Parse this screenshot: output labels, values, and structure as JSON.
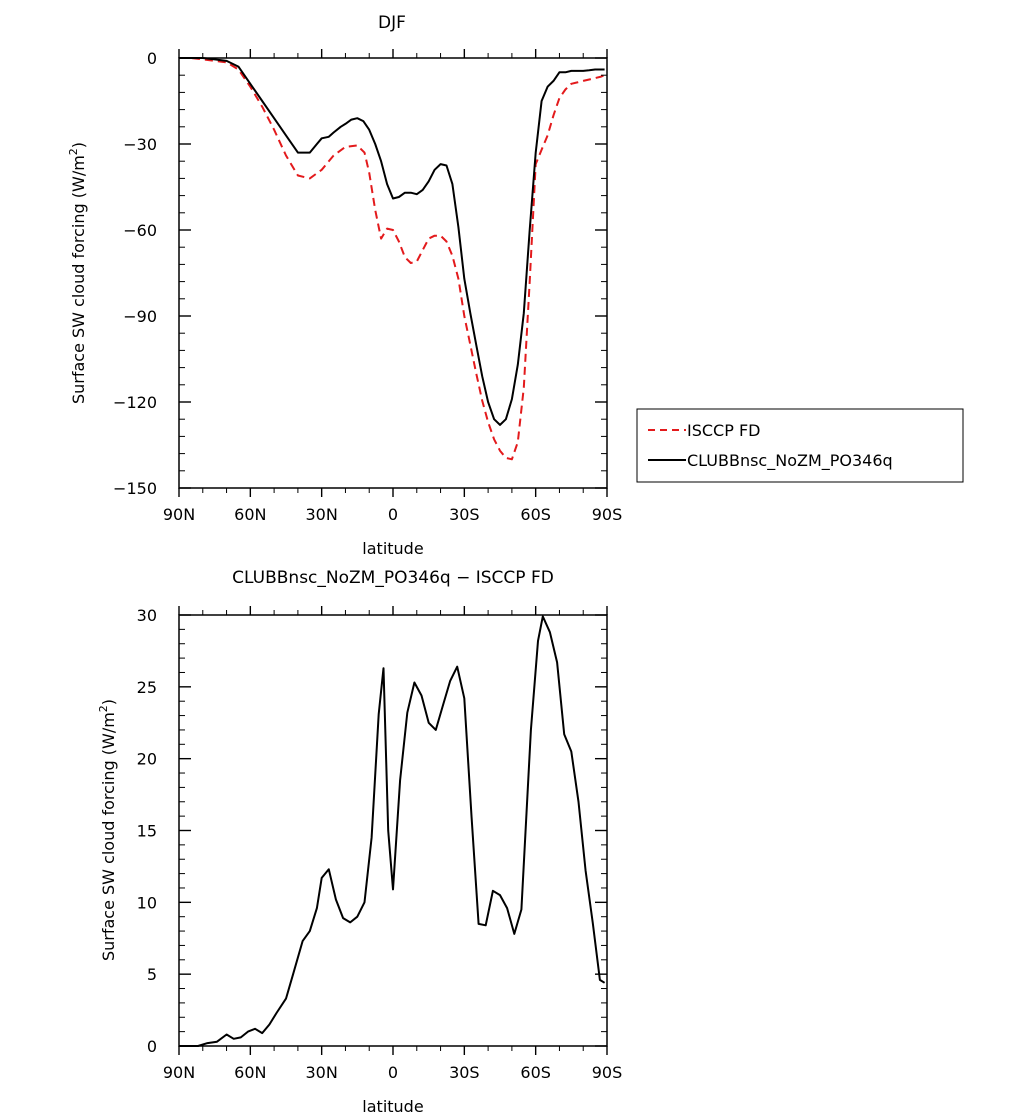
{
  "chart_data": [
    {
      "type": "line",
      "title": "DJF",
      "xlabel": "latitude",
      "ylabel": "Surface SW cloud forcing (W/m",
      "ylabel_sup": "2",
      "ylabel_close": ")",
      "xlim": [
        -90,
        90
      ],
      "ylim": [
        -150,
        0
      ],
      "x_ticks": [
        -90,
        -60,
        -30,
        0,
        30,
        60,
        90
      ],
      "x_tick_labels": [
        "90N",
        "60N",
        "30N",
        "0",
        "30S",
        "60S",
        "90S"
      ],
      "y_ticks": [
        0,
        -30,
        -60,
        -90,
        -120,
        -150
      ],
      "y_tick_labels": [
        "0",
        "−30",
        "−60",
        "−90",
        "−120",
        "−150"
      ],
      "legend_position": "right",
      "series": [
        {
          "name": "ISCCP FD",
          "color": "#e31a1c",
          "dash": "dashed",
          "x": [
            -90,
            -85,
            -80,
            -75,
            -70,
            -65,
            -60,
            -55,
            -50,
            -45,
            -40,
            -35,
            -30,
            -25,
            -20,
            -15,
            -12,
            -10,
            -7.5,
            -5,
            -2.5,
            0,
            2.5,
            5,
            7.5,
            10,
            12.5,
            15,
            17.5,
            20,
            22.5,
            25,
            27.5,
            30,
            32.5,
            35,
            37.5,
            40,
            42.5,
            45,
            47.5,
            50,
            52.5,
            55,
            57.5,
            60,
            62.5,
            65,
            67.5,
            70,
            72.5,
            75,
            77.5,
            80,
            82.5,
            85,
            87.5,
            89
          ],
          "y": [
            0,
            0,
            -0.5,
            -1,
            -1.5,
            -4,
            -10,
            -17,
            -25,
            -34,
            -41,
            -42,
            -39,
            -34,
            -31,
            -30.5,
            -33,
            -40,
            -53,
            -63,
            -59.5,
            -60,
            -64,
            -69.5,
            -71.5,
            -71,
            -67,
            -63,
            -62,
            -62,
            -64,
            -69,
            -77,
            -90,
            -100,
            -110,
            -119.5,
            -127,
            -133,
            -137,
            -139.5,
            -140,
            -134,
            -115,
            -78,
            -37,
            -32,
            -27,
            -20,
            -14,
            -11,
            -9,
            -8.5,
            -8,
            -7.5,
            -7,
            -6.5,
            -6
          ]
        },
        {
          "name": "CLUBBnsc_NoZM_PO346q",
          "color": "#000000",
          "dash": "solid",
          "x": [
            -90,
            -85,
            -80,
            -75,
            -70,
            -65,
            -60,
            -55,
            -50,
            -45,
            -40,
            -35,
            -32,
            -30,
            -27,
            -25,
            -22,
            -20,
            -17.5,
            -15,
            -12.5,
            -10,
            -7.5,
            -5,
            -2.5,
            0,
            2.5,
            5,
            7.5,
            10,
            12.5,
            15,
            17.5,
            20,
            22.5,
            25,
            27.5,
            30,
            32.5,
            35,
            37.5,
            40,
            42.5,
            45,
            47.5,
            50,
            52.5,
            55,
            57.5,
            60,
            62.5,
            65,
            67.5,
            70,
            72.5,
            75,
            77.5,
            80,
            82.5,
            85,
            87.5,
            89
          ],
          "y": [
            0,
            0,
            0,
            -0.5,
            -1,
            -3,
            -9,
            -15,
            -21,
            -27,
            -33,
            -33,
            -30,
            -28,
            -27.5,
            -26,
            -24,
            -23,
            -21.5,
            -21,
            -22,
            -25,
            -30,
            -36,
            -44,
            -49,
            -48.5,
            -47,
            -47,
            -47.5,
            -46,
            -43,
            -39,
            -37,
            -37.5,
            -44,
            -59,
            -77,
            -89,
            -100,
            -111,
            -120,
            -126,
            -128,
            -126,
            -119,
            -107,
            -89,
            -60,
            -33,
            -15,
            -10,
            -8,
            -5,
            -5,
            -4.5,
            -4.5,
            -4.5,
            -4.3,
            -4,
            -4,
            -4
          ]
        }
      ]
    },
    {
      "type": "line",
      "title": "CLUBBnsc_NoZM_PO346q − ISCCP FD",
      "xlabel": "latitude",
      "ylabel": "Surface SW cloud forcing (W/m",
      "ylabel_sup": "2",
      "ylabel_close": ")",
      "xlim": [
        -90,
        90
      ],
      "ylim": [
        0,
        30
      ],
      "x_ticks": [
        -90,
        -60,
        -30,
        0,
        30,
        60,
        90
      ],
      "x_tick_labels": [
        "90N",
        "60N",
        "30N",
        "0",
        "30S",
        "60S",
        "90S"
      ],
      "y_ticks": [
        0,
        5,
        10,
        15,
        20,
        25,
        30
      ],
      "y_tick_labels": [
        "0",
        "5",
        "10",
        "15",
        "20",
        "25",
        "30"
      ],
      "series": [
        {
          "color": "#000000",
          "dash": "solid",
          "x": [
            -90,
            -86,
            -82,
            -78,
            -74,
            -70,
            -67,
            -64,
            -61,
            -58,
            -55,
            -52,
            -49,
            -45,
            -42,
            -38,
            -35,
            -32,
            -30,
            -27,
            -24,
            -21,
            -18,
            -15,
            -12,
            -9,
            -6,
            -4,
            -2,
            0,
            3,
            6,
            9,
            12,
            15,
            18,
            21,
            24,
            27,
            30,
            33,
            36,
            39,
            42,
            45,
            48,
            51,
            54,
            58,
            61,
            63,
            66,
            69,
            72,
            75,
            78,
            81,
            84,
            87,
            89
          ],
          "y": [
            0,
            0,
            0,
            0.2,
            0.3,
            0.8,
            0.5,
            0.6,
            1.0,
            1.2,
            0.9,
            1.5,
            2.3,
            3.3,
            5.0,
            7.3,
            8.0,
            9.6,
            11.7,
            12.3,
            10.2,
            8.9,
            8.6,
            9.0,
            10.0,
            14.5,
            23.1,
            26.3,
            15.0,
            10.9,
            18.5,
            23.2,
            25.3,
            24.4,
            22.5,
            22.0,
            23.7,
            25.4,
            26.4,
            24.2,
            16.0,
            8.5,
            8.4,
            10.8,
            10.5,
            9.6,
            7.8,
            9.5,
            22.0,
            28.2,
            29.9,
            28.8,
            26.7,
            21.7,
            20.5,
            17.0,
            12.2,
            8.6,
            4.6,
            4.4
          ]
        }
      ]
    }
  ]
}
